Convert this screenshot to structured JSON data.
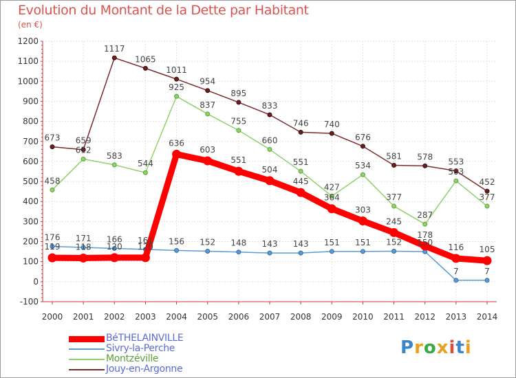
{
  "title": "Evolution du Montant de la Dette par Habitant",
  "subtitle": "(en €)",
  "logo": {
    "text": "Proxiti",
    "colors": [
      "#3a86c8",
      "#e8a020",
      "#3aa845",
      "#e8a020",
      "#d94f3a",
      "#3a86c8",
      "#e8a020"
    ]
  },
  "chart_data": {
    "type": "line",
    "x": [
      2000,
      2001,
      2002,
      2003,
      2004,
      2005,
      2006,
      2007,
      2008,
      2009,
      2010,
      2011,
      2012,
      2013,
      2014
    ],
    "ylim": [
      -100,
      1200
    ],
    "yticks": [
      -100,
      0,
      100,
      200,
      300,
      400,
      500,
      600,
      700,
      800,
      900,
      1000,
      1100,
      1200
    ],
    "grid": true,
    "legend_position": "bottom-left",
    "series": [
      {
        "name": "Jouy-en-Argonne",
        "color": "#7b2a2a",
        "values": [
          673,
          659,
          1117,
          1065,
          1011,
          954,
          895,
          833,
          746,
          740,
          676,
          581,
          578,
          553,
          452
        ]
      },
      {
        "name": "Montzéville",
        "color": "#8fd16a",
        "values": [
          458,
          612,
          583,
          544,
          925,
          837,
          755,
          660,
          551,
          427,
          534,
          377,
          287,
          503,
          377
        ]
      },
      {
        "name": "Sivry-la-Perche",
        "color": "#5a9bd5",
        "values": [
          176,
          171,
          166,
          161,
          156,
          152,
          148,
          143,
          143,
          151,
          151,
          152,
          150,
          7,
          7
        ]
      },
      {
        "name": "BéTHELAINVILLE",
        "color": "#ff0000",
        "values": [
          119,
          118,
          120,
          120,
          636,
          603,
          551,
          504,
          445,
          364,
          303,
          245,
          178,
          116,
          105
        ]
      }
    ],
    "legend_order": [
      "BéTHELAINVILLE",
      "Sivry-la-Perche",
      "Montzéville",
      "Jouy-en-Argonne"
    ]
  }
}
